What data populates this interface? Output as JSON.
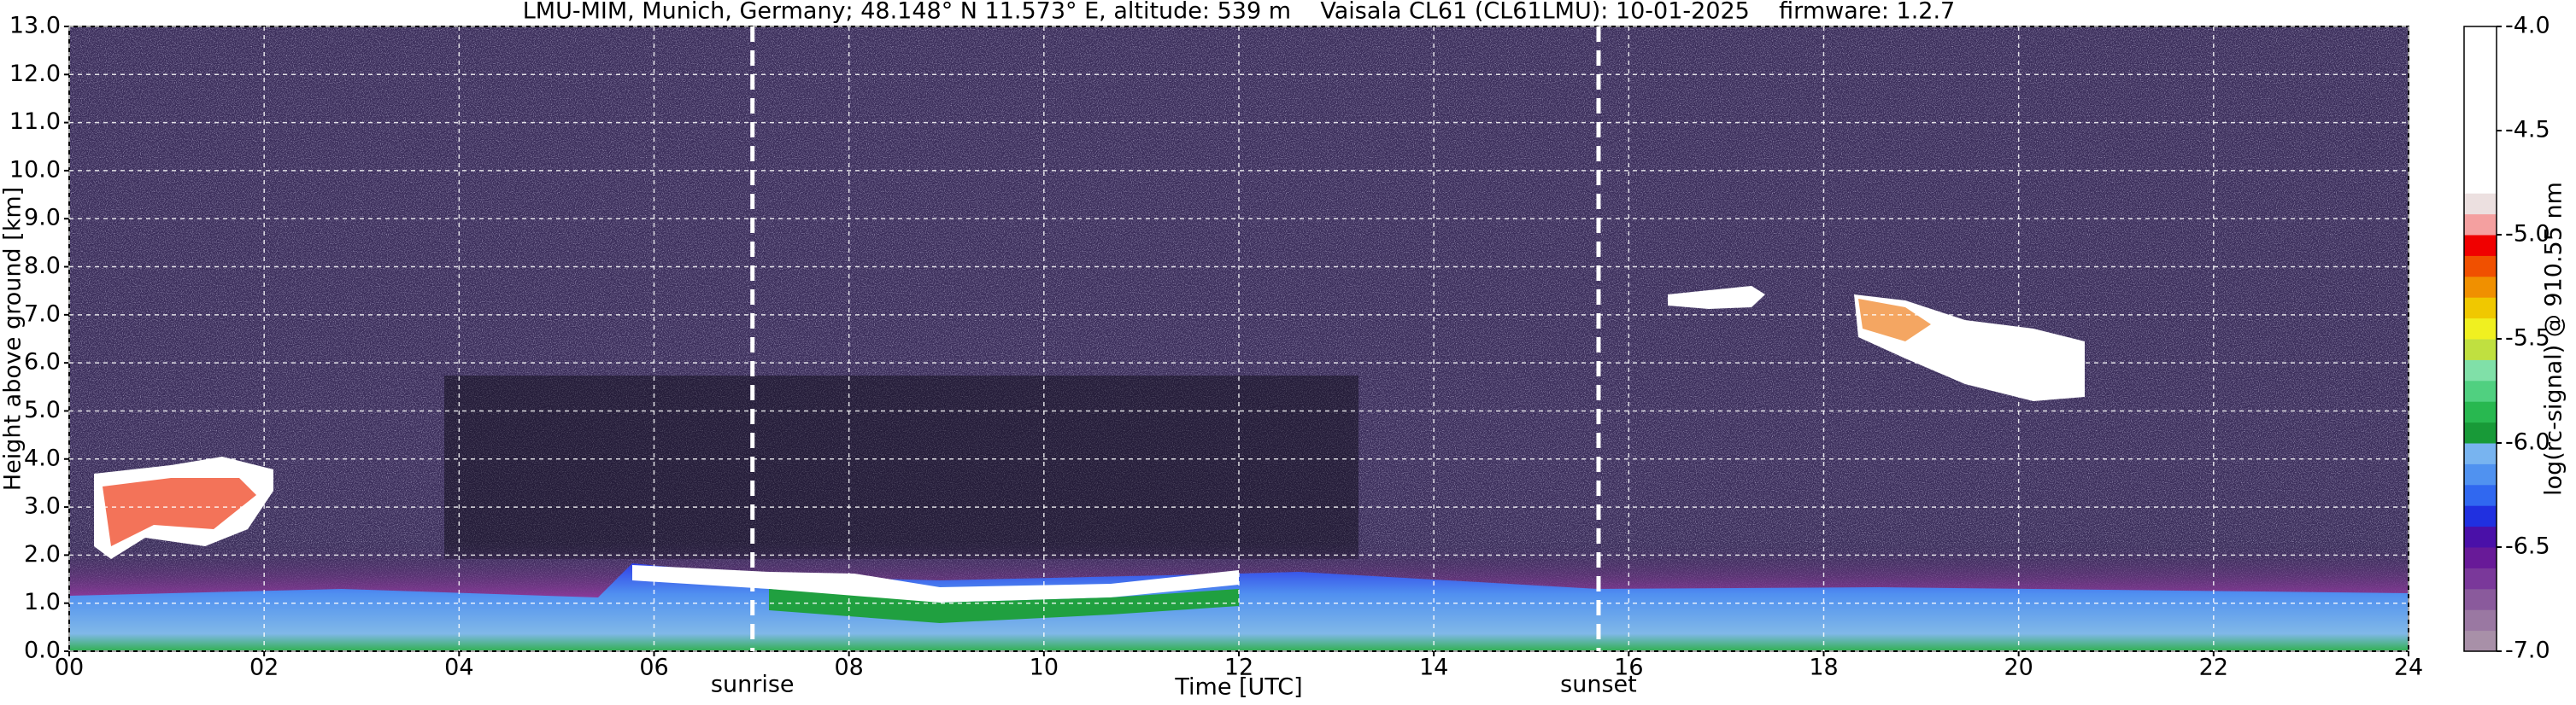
{
  "chart_data": {
    "type": "heatmap",
    "title": "LMU-MIM, Munich, Germany; 48.148° N 11.573° E, altitude: 539 m    Vaisala CL61 (CL61LMU): 10-01-2025    firmware: 1.2.7",
    "xlabel": "Time [UTC]",
    "ylabel": "Height above ground [km]",
    "xlim": [
      0,
      24
    ],
    "ylim": [
      0,
      13
    ],
    "xticks": [
      {
        "value": 0,
        "label": "00"
      },
      {
        "value": 2,
        "label": "02"
      },
      {
        "value": 4,
        "label": "04"
      },
      {
        "value": 6,
        "label": "06"
      },
      {
        "value": 8,
        "label": "08"
      },
      10,
      12,
      14,
      16,
      18,
      20,
      22,
      24
    ],
    "yticks": [
      {
        "value": 0,
        "label": "0.0"
      },
      {
        "value": 1,
        "label": "1.0"
      },
      {
        "value": 2,
        "label": "2.0"
      },
      {
        "value": 3,
        "label": "3.0"
      },
      {
        "value": 4,
        "label": "4.0"
      },
      {
        "value": 5,
        "label": "5.0"
      },
      {
        "value": 6,
        "label": "6.0"
      },
      {
        "value": 7,
        "label": "7.0"
      },
      {
        "value": 8,
        "label": "8.0"
      },
      {
        "value": 9,
        "label": "9.0"
      },
      {
        "value": 10,
        "label": "10.0"
      },
      {
        "value": 11,
        "label": "11.0"
      },
      {
        "value": 12,
        "label": "12.0"
      },
      {
        "value": 13,
        "label": "13.0"
      }
    ],
    "grid": true,
    "annotations": [
      {
        "label": "sunrise",
        "x": 7.01
      },
      {
        "label": "sunset",
        "x": 15.69
      }
    ],
    "colorbar": {
      "label": "log(rc-signal) @ 910.55 nm",
      "lim": [
        -7,
        -4
      ],
      "ticks": [
        {
          "value": -4,
          "label": "-4.0"
        },
        -4.5,
        {
          "value": -5,
          "label": "-5.0"
        },
        -5.5,
        {
          "value": -6,
          "label": "-6.0"
        },
        -6.5,
        {
          "value": -7,
          "label": "-7.0"
        }
      ],
      "colors": [
        "#a890a8",
        "#9a78a2",
        "#8a5a9c",
        "#7a389a",
        "#681a98",
        "#4a10a8",
        "#2030e0",
        "#3068f0",
        "#5092f0",
        "#78b4f0",
        "#189a38",
        "#28b850",
        "#50d080",
        "#80e0a8",
        "#c0e040",
        "#f0f020",
        "#f0c800",
        "#f09000",
        "#f05000",
        "#f00000",
        "#f4a0a0",
        "#ece0e0",
        "#ffffff",
        "#ffffff",
        "#ffffff",
        "#ffffff",
        "#ffffff",
        "#ffffff",
        "#ffffff",
        "#ffffff"
      ]
    }
  }
}
